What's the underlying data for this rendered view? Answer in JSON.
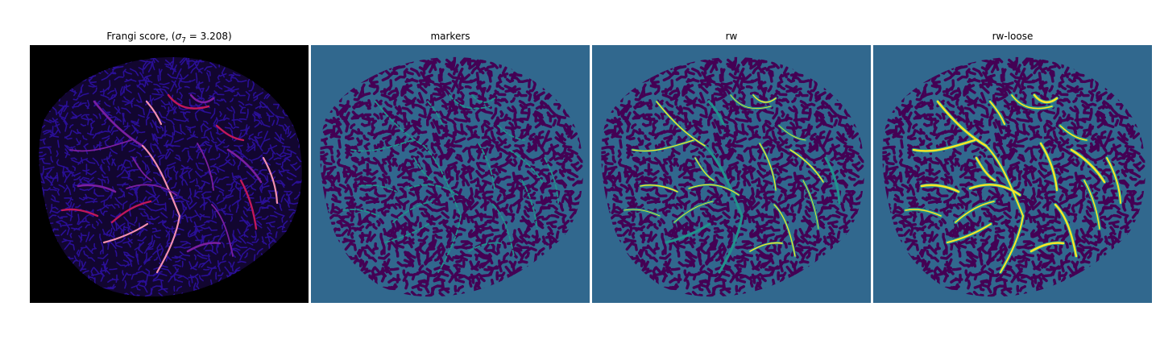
{
  "figure": {
    "panels": [
      {
        "key": "frangi",
        "title_prefix": "Frangi score, (",
        "title_sigma": "σ",
        "title_sub": "7",
        "title_suffix": " = 3.208)"
      },
      {
        "key": "markers",
        "title": "markers"
      },
      {
        "key": "rw",
        "title": "rw"
      },
      {
        "key": "loose",
        "title": "rw-loose"
      }
    ],
    "colors": {
      "frangi_background": "#000000",
      "frangi_texture": "#2a0f96",
      "frangi_vessel_low": "#7b1fa2",
      "frangi_vessel_high": "#f48fb1",
      "seg_background": "#31688e",
      "seg_tissue": "#440154",
      "seg_marker": "#21918c",
      "seg_vessel": "#fde725"
    }
  }
}
